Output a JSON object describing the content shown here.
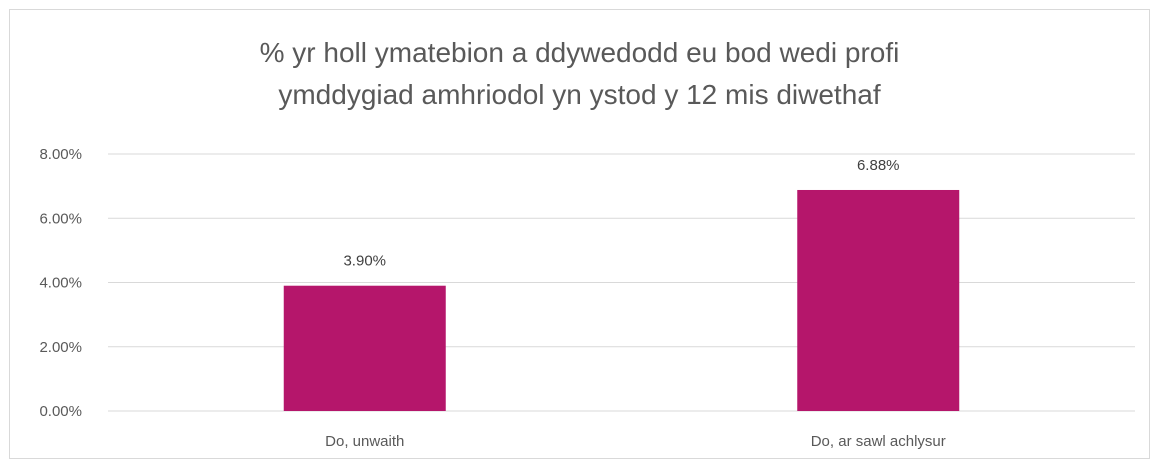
{
  "chart_data": {
    "type": "bar",
    "title_lines": [
      "% yr holl ymatebion a ddywedodd eu bod wedi profi",
      "ymddygiad amhriodol yn ystod y 12 mis diwethaf"
    ],
    "categories": [
      "Do, unwaith",
      "Do, ar sawl achlysur"
    ],
    "values": [
      3.9,
      6.88
    ],
    "data_labels": [
      "3.90%",
      "6.88%"
    ],
    "ylim": [
      0,
      8
    ],
    "yticks": [
      0,
      2,
      4,
      6,
      8
    ],
    "ytick_labels": [
      "0.00%",
      "2.00%",
      "4.00%",
      "6.00%",
      "8.00%"
    ],
    "grid": true,
    "bar_color": "#b5166b",
    "gridline_color": "#d9d9d9",
    "text_color": "#595959"
  }
}
